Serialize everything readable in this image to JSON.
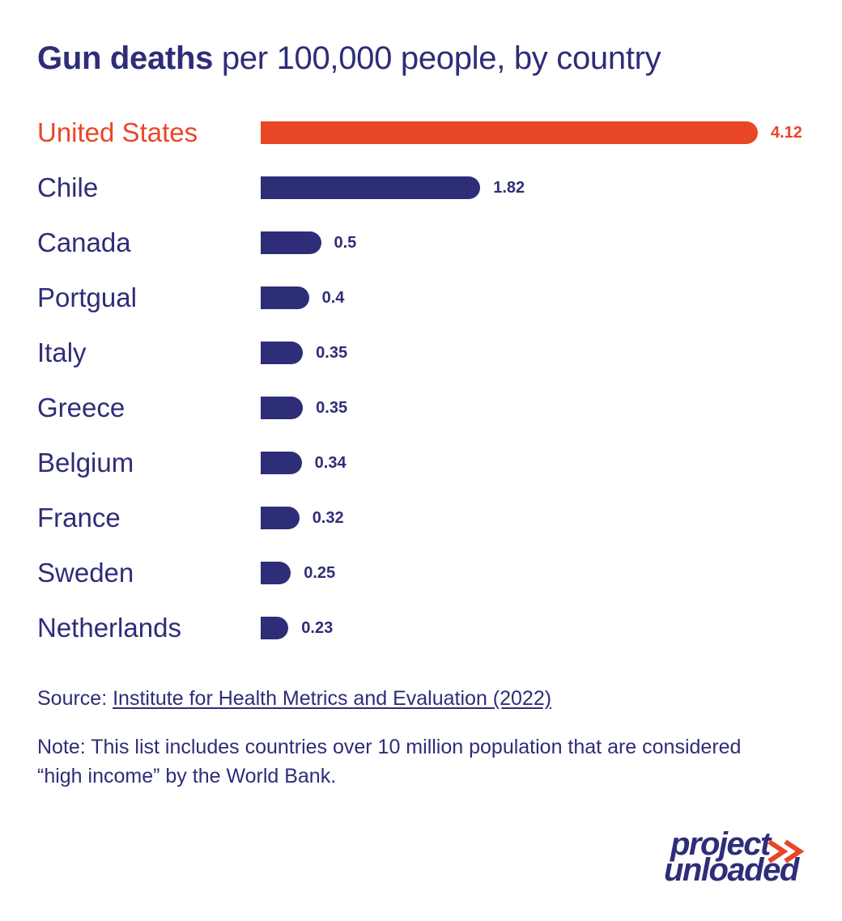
{
  "title": {
    "bold": "Gun deaths",
    "rest": " per 100,000 people, by country"
  },
  "colors": {
    "highlight": "#e94627",
    "primary": "#2e2d78",
    "background": "#ffffff"
  },
  "chart_data": {
    "type": "bar",
    "orientation": "horizontal",
    "title": "Gun deaths per 100,000 people, by country",
    "xlabel": "",
    "ylabel": "",
    "xlim": [
      0,
      4.12
    ],
    "grid": false,
    "legend": "none",
    "highlight_category": "United States",
    "categories": [
      "United States",
      "Chile",
      "Canada",
      "Portgual",
      "Italy",
      "Greece",
      "Belgium",
      "France",
      "Sweden",
      "Netherlands"
    ],
    "values": [
      4.12,
      1.82,
      0.5,
      0.4,
      0.35,
      0.35,
      0.34,
      0.32,
      0.25,
      0.23
    ],
    "value_labels": [
      "4.12",
      "1.82",
      "0.5",
      "0.4",
      "0.35",
      "0.35",
      "0.34",
      "0.32",
      "0.25",
      "0.23"
    ]
  },
  "footer": {
    "source_prefix": "Source: ",
    "source_link": "Institute for Health Metrics and Evaluation (2022)",
    "note": "Note: This list includes countries over 10 million population that are considered “high income” by the World Bank."
  },
  "logo": {
    "line1": "project",
    "line2": "unloaded",
    "icon": "double-chevron-right-icon"
  }
}
